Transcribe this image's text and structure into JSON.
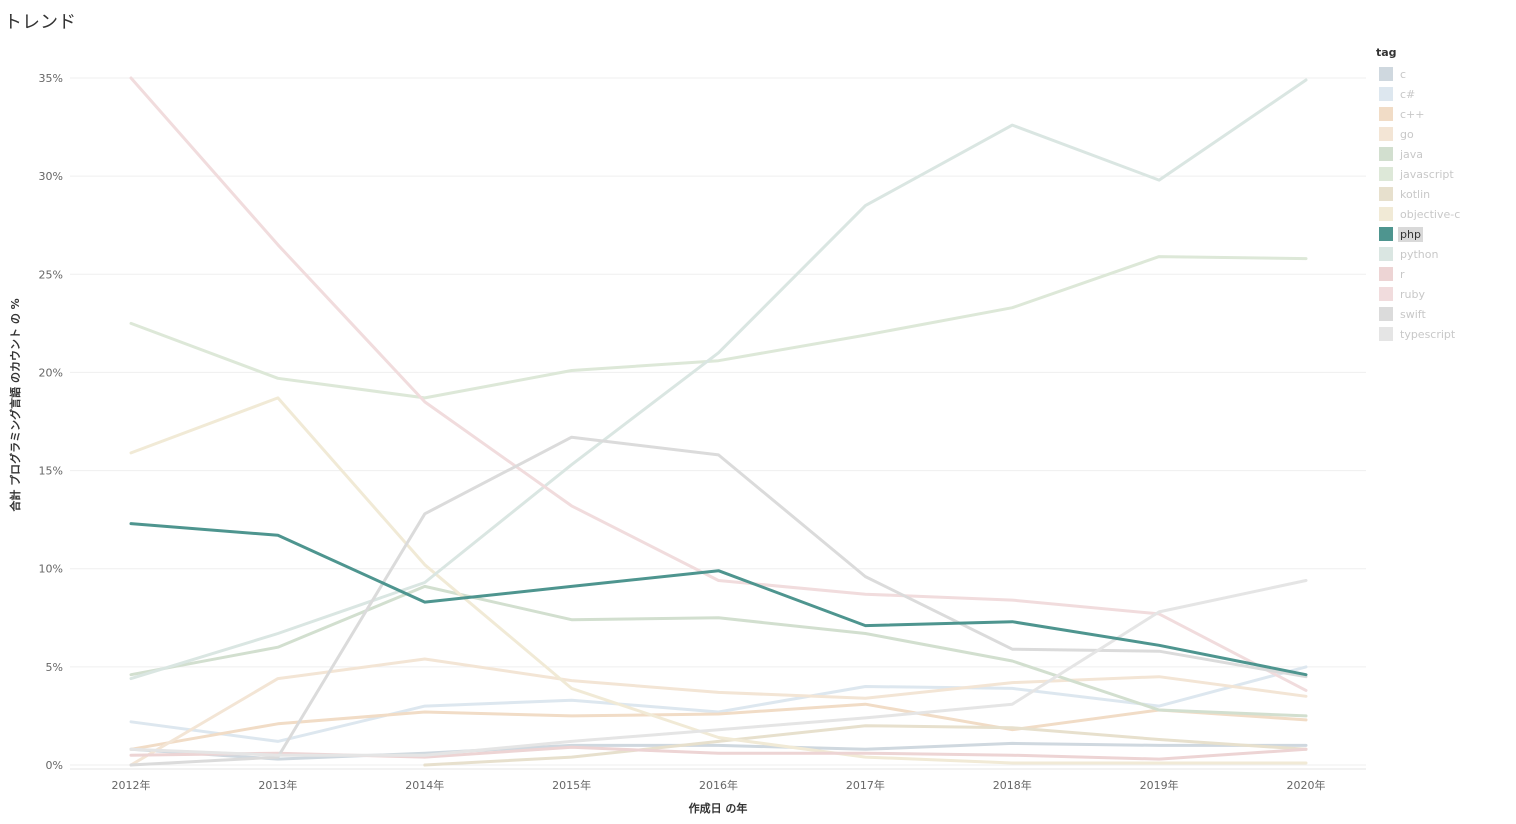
{
  "page": {
    "title": "トレンド"
  },
  "legend": {
    "title": "tag",
    "highlighted": "php"
  },
  "chart_data": {
    "type": "line",
    "title": "",
    "xlabel": "作成日 の年",
    "ylabel": "合計 プログラミング言語 のカウント の %",
    "x": [
      "2012年",
      "2013年",
      "2014年",
      "2015年",
      "2016年",
      "2017年",
      "2018年",
      "2019年",
      "2020年"
    ],
    "ylim": [
      0,
      35
    ],
    "yticks": [
      0,
      5,
      10,
      15,
      20,
      25,
      30,
      35
    ],
    "ytick_labels": [
      "0%",
      "5%",
      "10%",
      "15%",
      "20%",
      "25%",
      "30%",
      "35%"
    ],
    "grid": true,
    "legend_position": "right",
    "series": [
      {
        "name": "c",
        "color": "#cfd8df",
        "values": [
          0.8,
          0.3,
          0.6,
          1.0,
          1.0,
          0.8,
          1.1,
          1.0,
          1.0
        ]
      },
      {
        "name": "c#",
        "color": "#dde7ef",
        "values": [
          2.2,
          1.2,
          3.0,
          3.3,
          2.7,
          4.0,
          3.9,
          3.0,
          5.0
        ]
      },
      {
        "name": "c++",
        "color": "#f1dcc6",
        "values": [
          0.8,
          2.1,
          2.7,
          2.5,
          2.6,
          3.1,
          1.8,
          2.8,
          2.3
        ]
      },
      {
        "name": "go",
        "color": "#f3e5d5",
        "values": [
          0.0,
          4.4,
          5.4,
          4.3,
          3.7,
          3.4,
          4.2,
          4.5,
          3.5
        ]
      },
      {
        "name": "java",
        "color": "#d2dfcf",
        "values": [
          4.6,
          6.0,
          9.1,
          7.4,
          7.5,
          6.7,
          5.3,
          2.8,
          2.5
        ]
      },
      {
        "name": "javascript",
        "color": "#dde8d8",
        "values": [
          22.5,
          19.7,
          18.7,
          20.1,
          20.6,
          21.9,
          23.3,
          25.9,
          25.8
        ]
      },
      {
        "name": "kotlin",
        "color": "#e7e0cd",
        "values": [
          null,
          null,
          0.0,
          0.4,
          1.2,
          2.0,
          1.9,
          1.3,
          0.8
        ]
      },
      {
        "name": "objective-c",
        "color": "#f1ead6",
        "values": [
          15.9,
          18.7,
          10.2,
          3.9,
          1.4,
          0.4,
          0.1,
          0.1,
          0.1
        ]
      },
      {
        "name": "php",
        "color": "#4e958f",
        "values": [
          12.3,
          11.7,
          8.3,
          9.1,
          9.9,
          7.1,
          7.3,
          6.1,
          4.6
        ]
      },
      {
        "name": "python",
        "color": "#dae6e2",
        "values": [
          4.4,
          6.7,
          9.3,
          15.3,
          21.0,
          28.5,
          32.6,
          29.8,
          34.9
        ]
      },
      {
        "name": "r",
        "color": "#edd4d4",
        "values": [
          0.5,
          0.6,
          0.4,
          0.9,
          0.6,
          0.6,
          0.5,
          0.3,
          0.8
        ]
      },
      {
        "name": "ruby",
        "color": "#f1dcdd",
        "values": [
          35.0,
          26.5,
          18.5,
          13.2,
          9.4,
          8.7,
          8.4,
          7.7,
          3.8
        ]
      },
      {
        "name": "swift",
        "color": "#dbdbdb",
        "values": [
          0.0,
          0.4,
          12.8,
          16.7,
          15.8,
          9.6,
          5.9,
          5.8,
          4.5
        ]
      },
      {
        "name": "typescript",
        "color": "#e5e5e5",
        "values": [
          0.8,
          0.5,
          0.5,
          1.2,
          1.8,
          2.4,
          3.1,
          7.8,
          9.4
        ]
      }
    ]
  }
}
